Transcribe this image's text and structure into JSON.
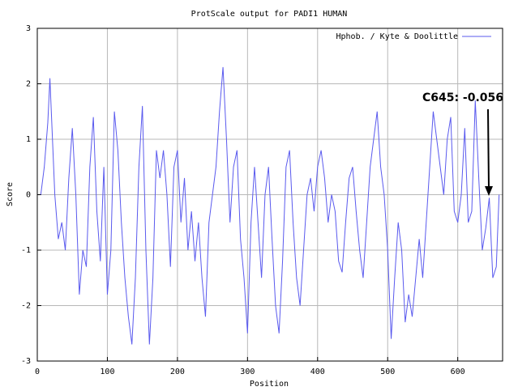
{
  "chart_data": {
    "type": "line",
    "title": "ProtScale output for PADI1 HUMAN",
    "xlabel": "Position",
    "ylabel": "Score",
    "annotation": "C645: -0.056",
    "legend": "top-right",
    "grid": true,
    "xlim": [
      0,
      664
    ],
    "ylim": [
      -3,
      3
    ],
    "xticks": [
      0,
      100,
      200,
      300,
      400,
      500,
      600
    ],
    "yticks": [
      -3,
      -2,
      -1,
      0,
      1,
      2,
      3
    ],
    "x": [
      5,
      10,
      15,
      18,
      20,
      25,
      30,
      35,
      40,
      45,
      50,
      55,
      60,
      65,
      70,
      75,
      80,
      85,
      90,
      95,
      100,
      105,
      110,
      115,
      120,
      125,
      130,
      135,
      140,
      145,
      150,
      155,
      160,
      165,
      170,
      175,
      180,
      185,
      190,
      195,
      200,
      205,
      210,
      215,
      220,
      225,
      230,
      235,
      240,
      245,
      250,
      255,
      260,
      265,
      270,
      275,
      280,
      285,
      290,
      295,
      300,
      305,
      310,
      315,
      320,
      325,
      330,
      335,
      340,
      345,
      350,
      355,
      360,
      365,
      370,
      375,
      380,
      385,
      390,
      395,
      400,
      405,
      410,
      415,
      420,
      425,
      430,
      435,
      440,
      445,
      450,
      455,
      460,
      465,
      470,
      475,
      480,
      485,
      490,
      495,
      500,
      505,
      510,
      515,
      520,
      525,
      530,
      535,
      540,
      545,
      550,
      555,
      560,
      565,
      570,
      575,
      580,
      585,
      590,
      595,
      600,
      605,
      610,
      615,
      620,
      625,
      630,
      635,
      640,
      645,
      650,
      655,
      659
    ],
    "series": [
      {
        "name": "Hphob. / Kyte & Doolittle",
        "color": "#5a5aee",
        "values": [
          0.0,
          0.5,
          1.3,
          2.1,
          1.5,
          0.0,
          -0.8,
          -0.5,
          -1.0,
          0.3,
          1.2,
          0.0,
          -1.8,
          -1.0,
          -1.3,
          0.5,
          1.4,
          -0.3,
          -1.2,
          0.5,
          -1.8,
          -1.0,
          1.5,
          0.8,
          -0.5,
          -1.5,
          -2.2,
          -2.7,
          -1.5,
          0.5,
          1.6,
          -1.0,
          -2.7,
          -1.5,
          0.8,
          0.3,
          0.8,
          0.0,
          -1.3,
          0.5,
          0.8,
          -0.5,
          0.3,
          -1.0,
          -0.3,
          -1.2,
          -0.5,
          -1.5,
          -2.2,
          -0.5,
          0.0,
          0.5,
          1.5,
          2.3,
          1.0,
          -0.5,
          0.5,
          0.8,
          -0.8,
          -1.5,
          -2.5,
          -0.5,
          0.5,
          -0.5,
          -1.5,
          0.0,
          0.5,
          -0.8,
          -2.0,
          -2.5,
          -1.2,
          0.5,
          0.8,
          -0.5,
          -1.5,
          -2.0,
          -1.0,
          0.0,
          0.3,
          -0.3,
          0.5,
          0.8,
          0.3,
          -0.5,
          0.0,
          -0.3,
          -1.2,
          -1.4,
          -0.5,
          0.3,
          0.5,
          -0.3,
          -1.0,
          -1.5,
          -0.5,
          0.5,
          1.0,
          1.5,
          0.5,
          0.0,
          -1.0,
          -2.6,
          -1.5,
          -0.5,
          -1.0,
          -2.3,
          -1.8,
          -2.2,
          -1.5,
          -0.8,
          -1.5,
          -0.5,
          0.5,
          1.5,
          1.0,
          0.5,
          0.0,
          1.0,
          1.4,
          -0.3,
          -0.5,
          0.0,
          1.2,
          -0.5,
          -0.3,
          1.7,
          0.3,
          -1.0,
          -0.6,
          -0.056,
          -1.5,
          -1.3,
          0.0
        ]
      }
    ]
  }
}
